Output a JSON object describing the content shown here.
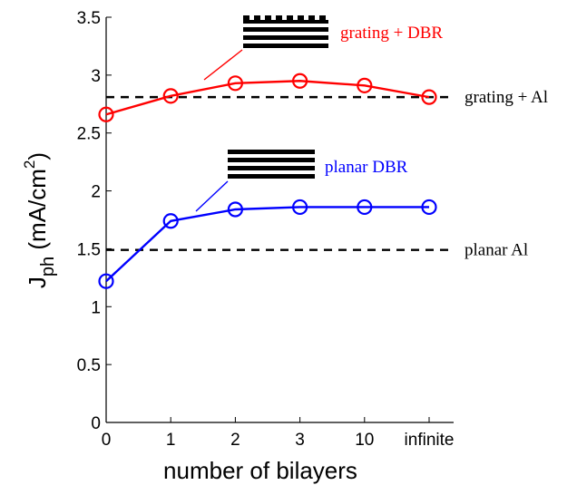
{
  "chart_data": {
    "type": "line",
    "categories": [
      "0",
      "1",
      "2",
      "3",
      "10",
      "infinite"
    ],
    "xlabel": "number of bilayers",
    "ylabel": {
      "main": "J",
      "sub": "ph",
      "unit_open": " (mA/cm",
      "unit_sup": "2",
      "unit_close": ")"
    },
    "ylim": [
      0,
      3.5
    ],
    "yticks": [
      "0",
      "0.5",
      "1",
      "1.5",
      "2",
      "2.5",
      "3",
      "3.5"
    ],
    "grid": false,
    "series": [
      {
        "name": "grating + DBR",
        "color": "#ff0000",
        "values": [
          2.66,
          2.82,
          2.93,
          2.95,
          2.91,
          2.81
        ]
      },
      {
        "name": "planar DBR",
        "color": "#0000ff",
        "values": [
          1.22,
          1.74,
          1.84,
          1.86,
          1.86,
          1.86
        ]
      }
    ],
    "reference_lines": [
      {
        "label": "grating + Al",
        "value": 2.81,
        "color": "#000000",
        "style": "dashed"
      },
      {
        "label": "planar Al",
        "value": 1.49,
        "color": "#000000",
        "style": "dashed"
      }
    ]
  }
}
